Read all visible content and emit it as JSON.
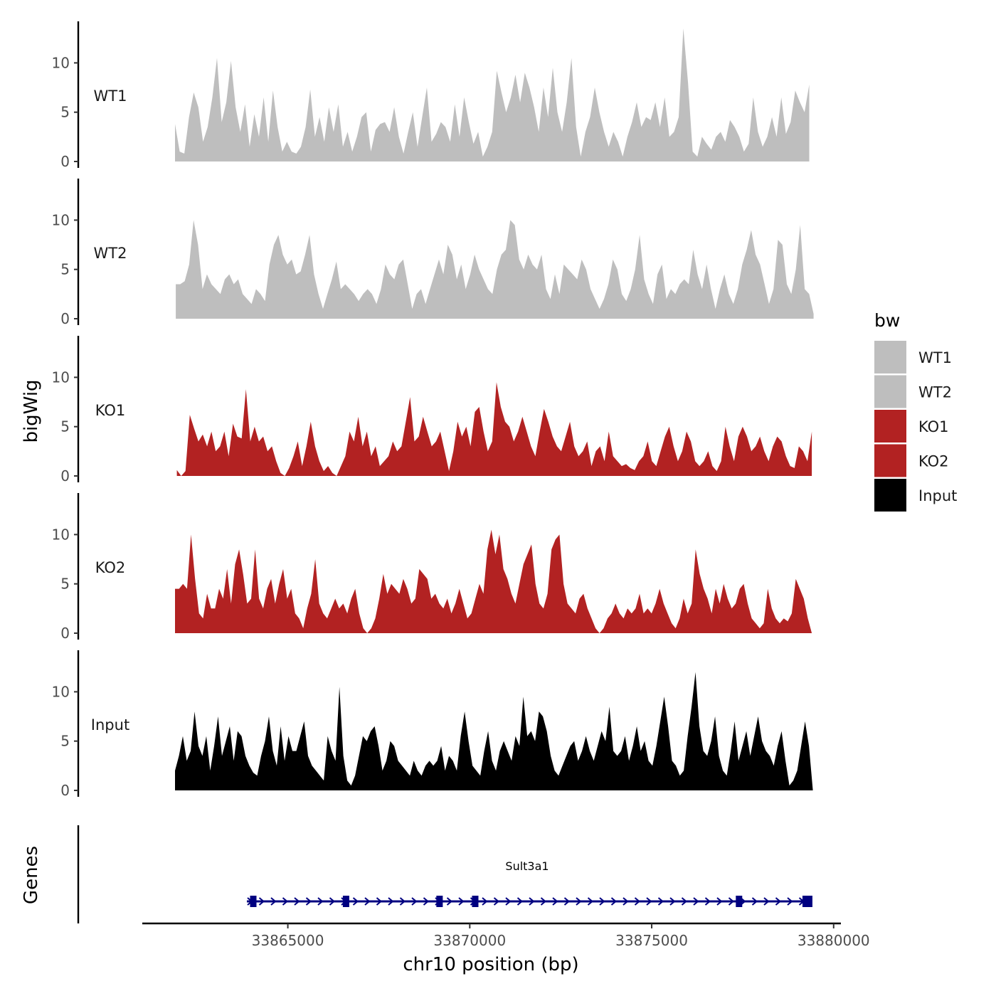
{
  "chart_data": {
    "type": "area",
    "y_axis_title": "bigWig",
    "x_axis_title": "chr10 position (bp)",
    "genes_axis_title": "Genes",
    "x_range": [
      33861000,
      33880200
    ],
    "x_ticks": [
      33865000,
      33870000,
      33875000,
      33880000
    ],
    "x_tick_labels": [
      "33865000",
      "33870000",
      "33875000",
      "33880000"
    ],
    "y_range": [
      0,
      14
    ],
    "y_ticks": [
      0,
      5,
      10
    ],
    "y_tick_labels": [
      "0",
      "5",
      "10"
    ],
    "legend": {
      "title": "bw",
      "entries": [
        {
          "label": "WT1",
          "color": "#BEBEBE"
        },
        {
          "label": "WT2",
          "color": "#BEBEBE"
        },
        {
          "label": "KO1",
          "color": "#B22222"
        },
        {
          "label": "KO2",
          "color": "#B22222"
        },
        {
          "label": "Input",
          "color": "#000000"
        }
      ]
    },
    "series": [
      {
        "name": "WT1",
        "color": "#BEBEBE",
        "x_start": 33861900,
        "x_end": 33879330,
        "values": [
          3.8,
          1.0,
          0.8,
          4.5,
          7.0,
          5.5,
          2.0,
          3.5,
          6.5,
          10.5,
          4.0,
          6.0,
          10.2,
          5.5,
          3.0,
          5.8,
          1.5,
          4.8,
          2.5,
          6.5,
          2.0,
          7.2,
          3.5,
          1.0,
          2.0,
          1.0,
          0.8,
          1.5,
          3.5,
          7.3,
          2.5,
          4.5,
          2.0,
          5.5,
          3.0,
          5.8,
          1.5,
          3.0,
          1.0,
          2.5,
          4.5,
          5.0,
          1.0,
          3.2,
          3.8,
          4.0,
          3.0,
          5.5,
          2.5,
          0.8,
          3.0,
          5.0,
          1.5,
          4.5,
          7.5,
          2.0,
          2.8,
          4.0,
          3.5,
          2.0,
          5.8,
          2.5,
          6.5,
          4.0,
          1.8,
          3.0,
          0.5,
          1.5,
          3.0,
          9.2,
          7.0,
          5.0,
          6.5,
          8.8,
          6.0,
          9.0,
          7.5,
          5.5,
          3.0,
          7.5,
          4.5,
          9.5,
          5.0,
          3.0,
          6.0,
          10.5,
          3.5,
          0.5,
          3.0,
          4.5,
          7.5,
          5.0,
          3.0,
          1.5,
          3.0,
          2.0,
          0.5,
          2.5,
          4.0,
          6.0,
          3.5,
          4.5,
          4.2,
          6.0,
          3.5,
          6.5,
          2.5,
          3.0,
          4.5,
          13.5,
          8.0,
          1.0,
          0.5,
          2.5,
          1.8,
          1.2,
          2.5,
          3.0,
          2.0,
          4.2,
          3.5,
          2.5,
          1.0,
          1.8,
          6.5,
          3.0,
          1.5,
          2.5,
          4.5,
          2.5,
          6.5,
          2.8,
          4.0,
          7.2,
          6.0,
          5.0,
          7.8
        ]
      },
      {
        "name": "WT2",
        "color": "#BEBEBE",
        "x_start": 33861920,
        "x_end": 33879450,
        "values": [
          3.5,
          3.5,
          3.8,
          5.5,
          10.0,
          7.5,
          3.0,
          4.5,
          3.5,
          3.0,
          2.5,
          4.0,
          4.5,
          3.5,
          4.0,
          2.5,
          2.0,
          1.5,
          3.0,
          2.5,
          1.8,
          5.5,
          7.5,
          8.5,
          6.5,
          5.5,
          6.0,
          4.5,
          4.8,
          6.5,
          8.5,
          4.5,
          2.5,
          1.0,
          2.5,
          4.0,
          5.8,
          3.0,
          3.5,
          3.0,
          2.5,
          1.8,
          2.5,
          3.0,
          2.5,
          1.5,
          3.0,
          5.5,
          4.5,
          4.0,
          5.5,
          6.0,
          3.5,
          1.0,
          2.5,
          3.0,
          1.5,
          3.0,
          4.5,
          6.0,
          4.5,
          7.5,
          6.5,
          4.0,
          5.5,
          3.0,
          4.5,
          6.5,
          5.0,
          4.0,
          3.0,
          2.5,
          5.0,
          6.5,
          7.0,
          10.0,
          9.5,
          6.0,
          5.0,
          6.5,
          5.5,
          5.0,
          6.5,
          3.0,
          2.0,
          4.5,
          2.5,
          5.5,
          5.0,
          4.5,
          4.0,
          6.0,
          5.0,
          3.0,
          2.0,
          1.0,
          2.0,
          3.5,
          6.0,
          5.0,
          2.5,
          1.8,
          3.0,
          5.0,
          8.5,
          4.0,
          2.5,
          1.5,
          4.5,
          5.5,
          2.0,
          3.0,
          2.5,
          3.5,
          4.0,
          3.5,
          7.0,
          4.5,
          3.0,
          5.5,
          3.0,
          1.0,
          3.0,
          4.5,
          2.5,
          1.5,
          3.0,
          5.5,
          7.0,
          9.0,
          6.5,
          5.5,
          3.5,
          1.5,
          3.0,
          8.0,
          7.5,
          3.5,
          2.5,
          5.0,
          9.5,
          3.0,
          2.5,
          0.5
        ]
      },
      {
        "name": "KO1",
        "color": "#B22222",
        "x_start": 33861950,
        "x_end": 33879400,
        "values": [
          0.6,
          0.0,
          0.5,
          6.2,
          4.8,
          3.5,
          4.2,
          3.0,
          4.5,
          2.5,
          3.0,
          4.5,
          2.0,
          5.3,
          4.0,
          3.8,
          8.8,
          3.5,
          5.0,
          3.5,
          4.0,
          2.5,
          3.0,
          1.5,
          0.3,
          0.0,
          0.8,
          2.0,
          3.5,
          1.0,
          3.0,
          5.5,
          3.0,
          1.5,
          0.5,
          1.0,
          0.3,
          0.0,
          1.0,
          2.0,
          4.5,
          3.5,
          6.0,
          3.0,
          4.5,
          2.0,
          3.0,
          1.0,
          1.5,
          2.0,
          3.5,
          2.5,
          3.0,
          5.5,
          8.0,
          3.5,
          4.0,
          6.0,
          4.5,
          3.0,
          3.5,
          4.5,
          2.5,
          0.5,
          2.5,
          5.5,
          4.0,
          5.0,
          3.0,
          6.5,
          7.0,
          4.5,
          2.5,
          3.5,
          9.5,
          7.0,
          5.5,
          5.0,
          3.5,
          4.5,
          6.0,
          4.5,
          3.0,
          2.0,
          4.5,
          6.8,
          5.5,
          4.0,
          3.0,
          2.5,
          4.0,
          5.5,
          3.0,
          2.0,
          2.5,
          3.5,
          1.0,
          2.5,
          3.0,
          1.5,
          4.5,
          2.0,
          1.5,
          1.0,
          1.2,
          0.8,
          0.6,
          1.5,
          2.0,
          3.5,
          1.5,
          1.0,
          2.5,
          4.0,
          5.0,
          3.0,
          1.5,
          2.5,
          4.5,
          3.5,
          1.5,
          1.0,
          1.5,
          2.5,
          1.0,
          0.5,
          1.5,
          5.0,
          3.0,
          1.5,
          4.0,
          5.0,
          4.0,
          2.5,
          3.0,
          4.0,
          2.5,
          1.5,
          3.0,
          4.0,
          3.5,
          2.0,
          1.0,
          0.8,
          3.0,
          2.5,
          1.5,
          4.5
        ]
      },
      {
        "name": "KO2",
        "color": "#B22222",
        "x_start": 33861900,
        "x_end": 33879400,
        "values": [
          4.5,
          4.5,
          5.0,
          4.5,
          10.0,
          5.5,
          2.0,
          1.5,
          4.0,
          2.5,
          2.5,
          4.5,
          3.5,
          6.5,
          3.0,
          7.0,
          8.5,
          6.0,
          3.0,
          3.5,
          8.5,
          3.5,
          2.5,
          4.5,
          5.5,
          3.0,
          5.0,
          6.5,
          3.5,
          4.5,
          2.0,
          1.5,
          0.5,
          2.5,
          4.0,
          7.5,
          3.0,
          2.0,
          1.5,
          2.5,
          3.5,
          2.5,
          3.0,
          2.0,
          3.5,
          4.5,
          2.0,
          0.5,
          0.0,
          0.5,
          1.5,
          3.5,
          6.0,
          4.0,
          5.0,
          4.5,
          4.0,
          5.5,
          4.5,
          3.0,
          3.5,
          6.5,
          6.0,
          5.5,
          3.5,
          4.0,
          3.0,
          2.5,
          3.5,
          2.0,
          3.0,
          4.5,
          3.0,
          1.5,
          2.0,
          3.5,
          5.0,
          4.0,
          8.5,
          10.5,
          8.0,
          10.0,
          6.5,
          5.5,
          4.0,
          3.0,
          5.0,
          7.0,
          8.0,
          9.0,
          5.0,
          3.0,
          2.5,
          4.0,
          8.5,
          9.5,
          10.0,
          5.0,
          3.0,
          2.5,
          2.0,
          3.5,
          4.0,
          2.5,
          1.5,
          0.5,
          0.0,
          0.5,
          1.5,
          2.0,
          3.0,
          2.0,
          1.5,
          2.5,
          2.0,
          2.5,
          4.0,
          2.0,
          2.5,
          2.0,
          3.0,
          4.5,
          3.0,
          2.0,
          1.0,
          0.5,
          1.5,
          3.5,
          2.0,
          3.0,
          8.5,
          6.0,
          4.5,
          3.5,
          2.0,
          4.5,
          3.0,
          5.0,
          3.5,
          2.5,
          3.0,
          4.5,
          5.0,
          3.0,
          1.5,
          1.0,
          0.5,
          1.0,
          4.5,
          2.5,
          1.5,
          1.0,
          1.5,
          1.2,
          2.0,
          5.5,
          4.5,
          3.5,
          1.5,
          0.0
        ]
      },
      {
        "name": "Input",
        "color": "#000000",
        "x_start": 33861900,
        "x_end": 33879430,
        "values": [
          2.0,
          3.5,
          5.5,
          3.0,
          4.0,
          8.0,
          4.5,
          3.5,
          5.5,
          2.0,
          4.5,
          7.5,
          3.5,
          5.0,
          6.5,
          3.0,
          6.0,
          5.5,
          3.5,
          2.5,
          1.8,
          1.5,
          3.5,
          5.0,
          7.5,
          4.0,
          2.5,
          6.5,
          3.0,
          5.5,
          4.0,
          4.0,
          5.5,
          7.0,
          3.5,
          2.5,
          2.0,
          1.5,
          1.0,
          5.5,
          4.0,
          3.0,
          10.5,
          3.5,
          1.0,
          0.5,
          1.5,
          3.5,
          5.5,
          5.0,
          6.0,
          6.5,
          4.5,
          2.0,
          3.0,
          5.0,
          4.5,
          3.0,
          2.5,
          2.0,
          1.5,
          3.0,
          2.0,
          1.5,
          2.5,
          3.0,
          2.5,
          3.0,
          4.5,
          2.0,
          3.5,
          3.0,
          2.0,
          5.5,
          8.0,
          5.0,
          2.5,
          2.0,
          1.5,
          4.0,
          6.0,
          3.0,
          2.0,
          4.0,
          5.0,
          4.0,
          3.0,
          5.5,
          4.5,
          9.5,
          5.5,
          6.0,
          5.0,
          8.0,
          7.5,
          6.0,
          3.5,
          2.0,
          1.5,
          2.5,
          3.5,
          4.5,
          5.0,
          3.0,
          4.0,
          5.5,
          4.0,
          3.0,
          4.5,
          6.0,
          5.0,
          8.5,
          4.0,
          3.5,
          4.0,
          5.5,
          3.0,
          4.5,
          6.5,
          4.0,
          5.0,
          3.0,
          2.5,
          4.5,
          7.0,
          9.5,
          6.5,
          3.0,
          2.5,
          1.5,
          2.0,
          5.5,
          8.5,
          12.0,
          6.5,
          4.0,
          3.5,
          5.0,
          7.5,
          3.5,
          2.0,
          1.5,
          4.0,
          7.0,
          3.0,
          4.5,
          6.0,
          3.5,
          5.5,
          7.5,
          5.0,
          4.0,
          3.5,
          2.5,
          4.5,
          6.0,
          3.0,
          0.5,
          1.0,
          2.0,
          4.5,
          7.0,
          4.5,
          0.0
        ]
      }
    ],
    "gene": {
      "name": "Sult3a1",
      "start": 33864030,
      "end": 33879300,
      "strand": "+",
      "color": "#000080",
      "exons": [
        33864050,
        33866600,
        33869170,
        33870150,
        33877400,
        33879280
      ]
    }
  }
}
